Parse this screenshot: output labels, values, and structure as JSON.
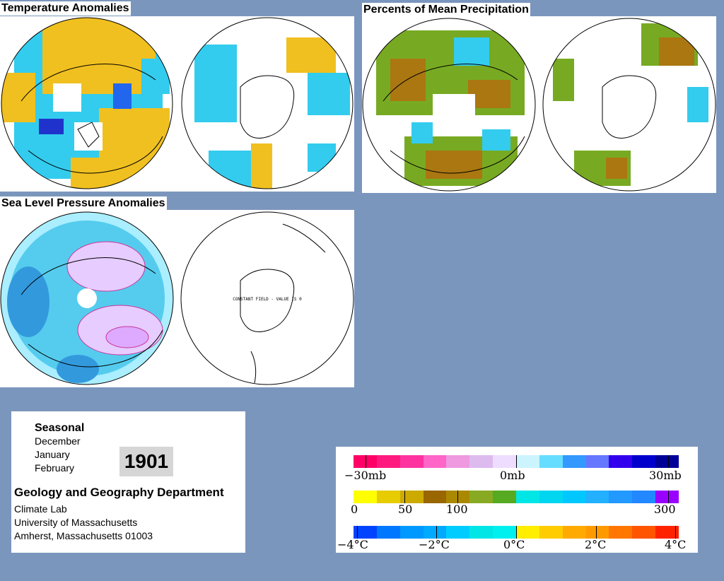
{
  "panels": {
    "temperature": {
      "title": "Temperature Anomalies"
    },
    "precipitation": {
      "title": "Percents of Mean Precipitation"
    },
    "pressure": {
      "title": "Sea Level Pressure Anomalies",
      "south_note": "CONSTANT FIELD - VALUE IS 0"
    }
  },
  "info": {
    "season_label": "Seasonal",
    "months": [
      "December",
      "January",
      "February"
    ],
    "year": "1901",
    "department": "Geology and Geography Department",
    "lab": "Climate Lab",
    "university": "University of Massachusetts",
    "address": "Amherst, Massachusetts 01003"
  },
  "legend": {
    "pressure": {
      "labels": [
        "−30mb",
        "0mb",
        "30mb"
      ],
      "colors": [
        "#ff0066",
        "#ff1a80",
        "#ff33a0",
        "#ff66c8",
        "#ee99e0",
        "#ddbbee",
        "#eeddff",
        "#ccf4ff",
        "#66ddff",
        "#3399ff",
        "#6677ff",
        "#3300ee",
        "#0000cc",
        "#000099"
      ]
    },
    "precipitation": {
      "labels": [
        "0",
        "50",
        "100",
        "300"
      ],
      "colors": [
        "#ffff00",
        "#e6cc00",
        "#ccaa00",
        "#996600",
        "#aa8800",
        "#88aa22",
        "#55aa22",
        "#00e6e6",
        "#00d6f0",
        "#00c8ff",
        "#22b0ff",
        "#2299ff",
        "#2288ff",
        "#9900ff"
      ]
    },
    "temperature": {
      "labels": [
        "−4°C",
        "−2°C",
        "0°C",
        "2°C",
        "4°C"
      ],
      "colors": [
        "#0044ff",
        "#0077ff",
        "#0099ff",
        "#00aaff",
        "#00ccff",
        "#00e6e6",
        "#00f0f0",
        "#ffee00",
        "#ffcc00",
        "#ffaa00",
        "#ff9900",
        "#ff7700",
        "#ff5500",
        "#ff2200"
      ]
    }
  },
  "colors": {
    "background": "#7b96bd",
    "warm": "#f0c020",
    "cool": "#33ccee",
    "deep_cool": "#2255dd",
    "precip_green": "#77aa22",
    "precip_brown": "#aa7711",
    "slp_light": "#aaeeff",
    "slp_mid": "#55ccee",
    "slp_high": "#e6ccff"
  }
}
